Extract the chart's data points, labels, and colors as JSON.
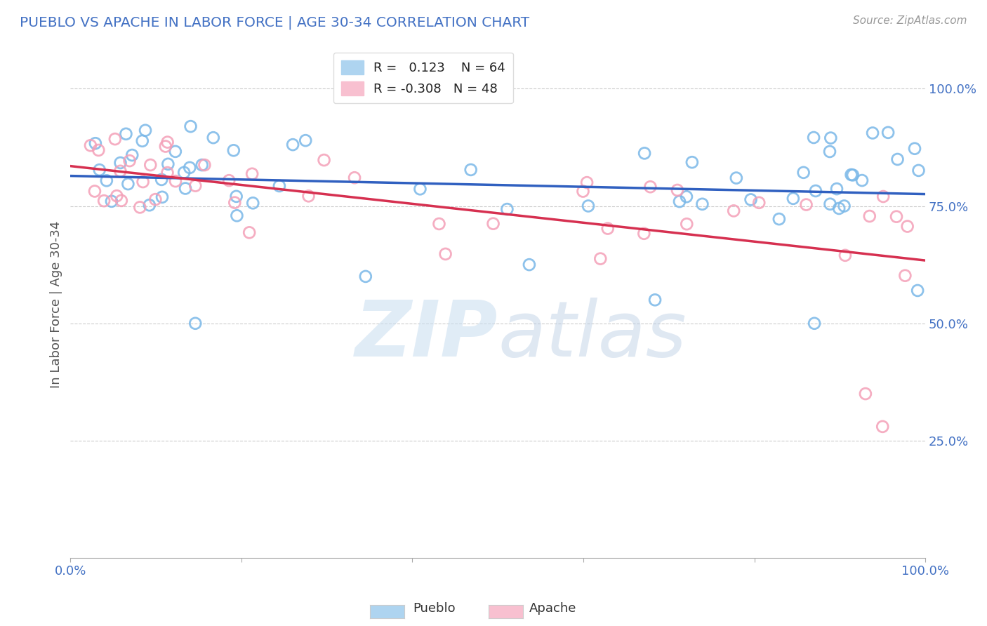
{
  "title": "PUEBLO VS APACHE IN LABOR FORCE | AGE 30-34 CORRELATION CHART",
  "source": "Source: ZipAtlas.com",
  "ylabel": "In Labor Force | Age 30-34",
  "xlim": [
    0.0,
    1.0
  ],
  "ylim": [
    0.0,
    1.08
  ],
  "yticks": [
    0.25,
    0.5,
    0.75,
    1.0
  ],
  "ytick_labels": [
    "25.0%",
    "50.0%",
    "75.0%",
    "100.0%"
  ],
  "xticks": [
    0.0,
    0.2,
    0.4,
    0.6,
    0.8,
    1.0
  ],
  "xtick_labels": [
    "0.0%",
    "",
    "",
    "",
    "",
    "100.0%"
  ],
  "pueblo_R": 0.123,
  "pueblo_N": 64,
  "apache_R": -0.308,
  "apache_N": 48,
  "pueblo_color": "#7ab8e8",
  "apache_color": "#f4a0b8",
  "pueblo_line_color": "#3060c0",
  "apache_line_color": "#d63050",
  "background_color": "#ffffff",
  "grid_color": "#cccccc",
  "title_color": "#4472c4",
  "tick_color": "#4472c4",
  "ylabel_color": "#555555",
  "source_color": "#999999"
}
